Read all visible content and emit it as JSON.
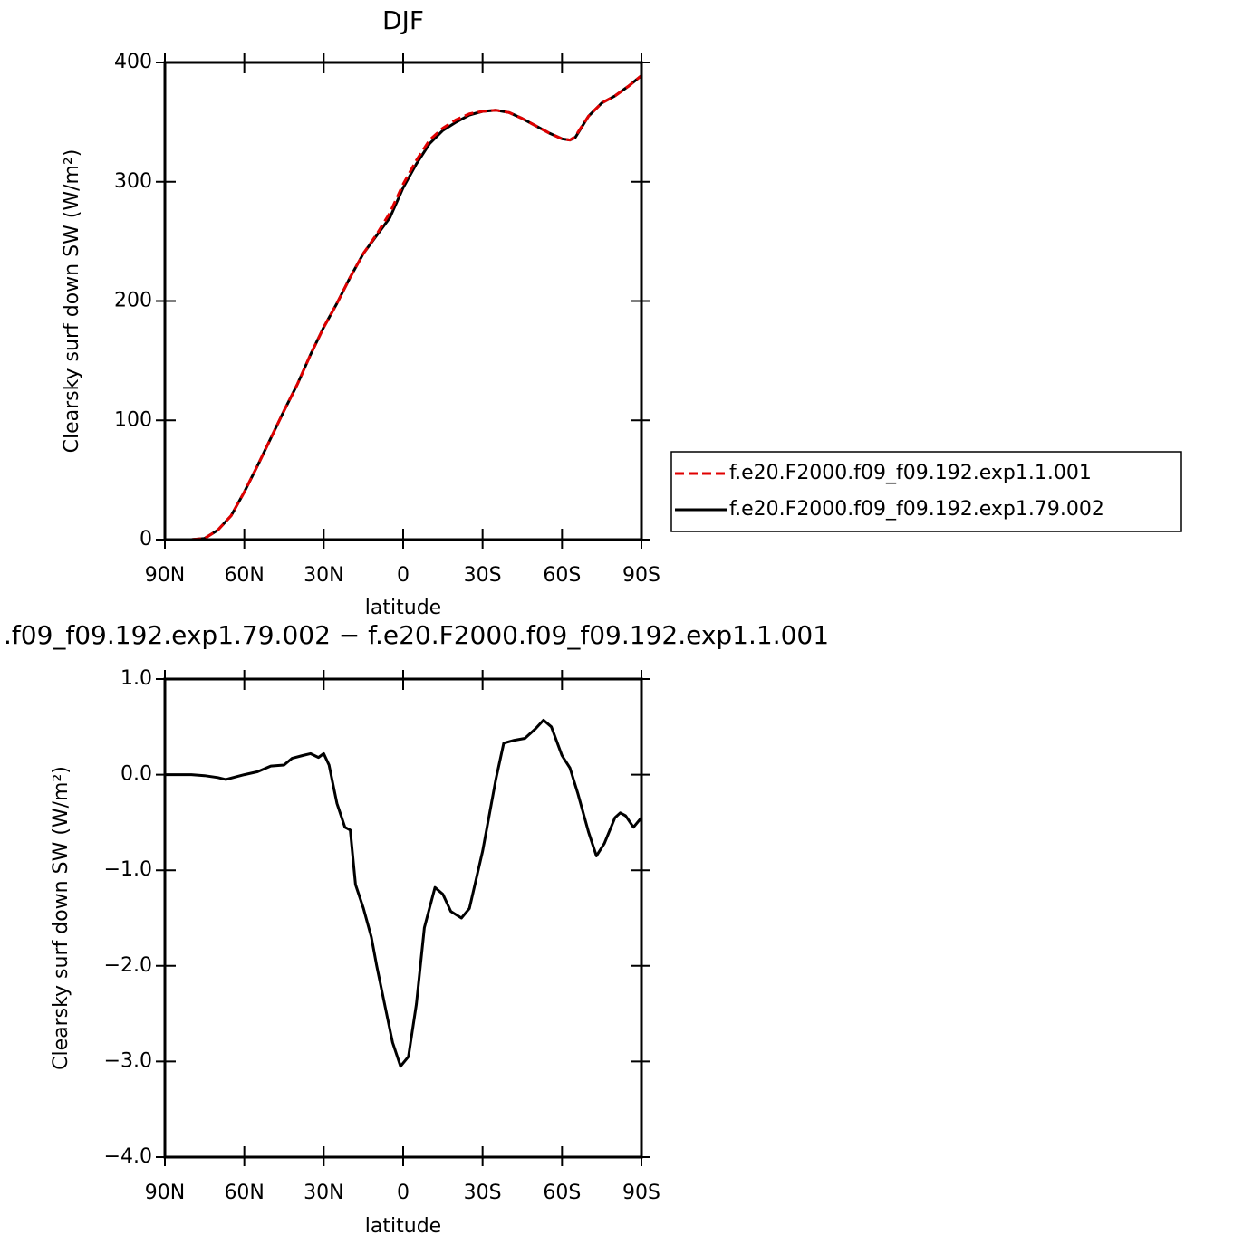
{
  "chart_data": [
    {
      "type": "line",
      "title": "DJF",
      "xlabel": "latitude",
      "ylabel": "Clearsky surf down SW (W/m²)",
      "x": [
        90,
        80,
        75,
        70,
        65,
        60,
        55,
        50,
        45,
        40,
        35,
        30,
        25,
        20,
        15,
        10,
        5,
        0,
        -5,
        -10,
        -15,
        -20,
        -25,
        -30,
        -35,
        -40,
        -45,
        -50,
        -55,
        -60,
        -63,
        -65,
        -70,
        -75,
        -80,
        -85,
        -90
      ],
      "series": [
        {
          "name": "f.e20.F2000.f09_f09.192.exp1.1.001",
          "color": "#e00000",
          "dash": true,
          "values": [
            0,
            0,
            1,
            8,
            20,
            40,
            62,
            85,
            108,
            130,
            155,
            178,
            198,
            220,
            240,
            256,
            274,
            298,
            318,
            335,
            345,
            352,
            357,
            359,
            360,
            358,
            353,
            347,
            341,
            336,
            335,
            338,
            355,
            366,
            372,
            380,
            389
          ]
        },
        {
          "name": "f.e20.F2000.f09_f09.192.exp1.79.002",
          "color": "#000000",
          "dash": false,
          "values": [
            0,
            0,
            1,
            8,
            20,
            40,
            62,
            85,
            108,
            130,
            155,
            178,
            198,
            220,
            240,
            255,
            270,
            295,
            315,
            332,
            343,
            350,
            356,
            359,
            360,
            358,
            353,
            347,
            341,
            336,
            335,
            337,
            355,
            366,
            372,
            380,
            389
          ]
        }
      ],
      "xlim": [
        90,
        -90
      ],
      "xticks": [
        {
          "value": 90,
          "label": "90N"
        },
        {
          "value": 60,
          "label": "60N"
        },
        {
          "value": 30,
          "label": "30N"
        },
        0,
        {
          "value": -30,
          "label": "30S"
        },
        {
          "value": -60,
          "label": "60S"
        },
        {
          "value": -90,
          "label": "90S"
        }
      ],
      "ylim": [
        0,
        400
      ],
      "yticks": [
        0,
        100,
        200,
        300,
        400
      ],
      "legend": "right"
    },
    {
      "type": "line",
      "title": ".f09_f09.192.exp1.79.002 − f.e20.F2000.f09_f09.192.exp1.1.001",
      "xlabel": "latitude",
      "ylabel": "Clearsky surf down SW (W/m²)",
      "x": [
        90,
        80,
        75,
        70,
        67,
        60,
        55,
        50,
        45,
        42,
        38,
        35,
        32,
        30,
        28,
        25,
        22,
        20,
        18,
        15,
        12,
        10,
        7,
        4,
        1,
        -2,
        -5,
        -8,
        -12,
        -15,
        -18,
        -22,
        -25,
        -30,
        -35,
        -38,
        -42,
        -46,
        -50,
        -53,
        -56,
        -60,
        -63,
        -66,
        -70,
        -73,
        -76,
        -80,
        -82,
        -84,
        -87,
        -90
      ],
      "values": [
        0,
        0,
        -0.01,
        -0.03,
        -0.05,
        0,
        0.03,
        0.09,
        0.1,
        0.17,
        0.2,
        0.22,
        0.18,
        0.22,
        0.1,
        -0.3,
        -0.55,
        -0.58,
        -1.15,
        -1.4,
        -1.7,
        -2.0,
        -2.4,
        -2.8,
        -3.05,
        -2.95,
        -2.4,
        -1.6,
        -1.18,
        -1.25,
        -1.43,
        -1.5,
        -1.4,
        -0.8,
        -0.05,
        0.33,
        0.36,
        0.38,
        0.48,
        0.57,
        0.5,
        0.2,
        0.07,
        -0.2,
        -0.6,
        -0.85,
        -0.72,
        -0.45,
        -0.4,
        -0.43,
        -0.55,
        -0.45
      ],
      "color": "#000000",
      "xlim": [
        90,
        -90
      ],
      "xticks": [
        {
          "value": 90,
          "label": "90N"
        },
        {
          "value": 60,
          "label": "60N"
        },
        {
          "value": 30,
          "label": "30N"
        },
        0,
        {
          "value": -30,
          "label": "30S"
        },
        {
          "value": -60,
          "label": "60S"
        },
        {
          "value": -90,
          "label": "90S"
        }
      ],
      "ylim": [
        -4,
        1
      ],
      "yticks": [
        {
          "value": 1,
          "label": "1.0"
        },
        {
          "value": 0,
          "label": "0.0"
        },
        {
          "value": -1,
          "label": "−1.0"
        },
        {
          "value": -2,
          "label": "−2.0"
        },
        {
          "value": -3,
          "label": "−3.0"
        },
        {
          "value": -4,
          "label": "−4.0"
        }
      ]
    }
  ]
}
